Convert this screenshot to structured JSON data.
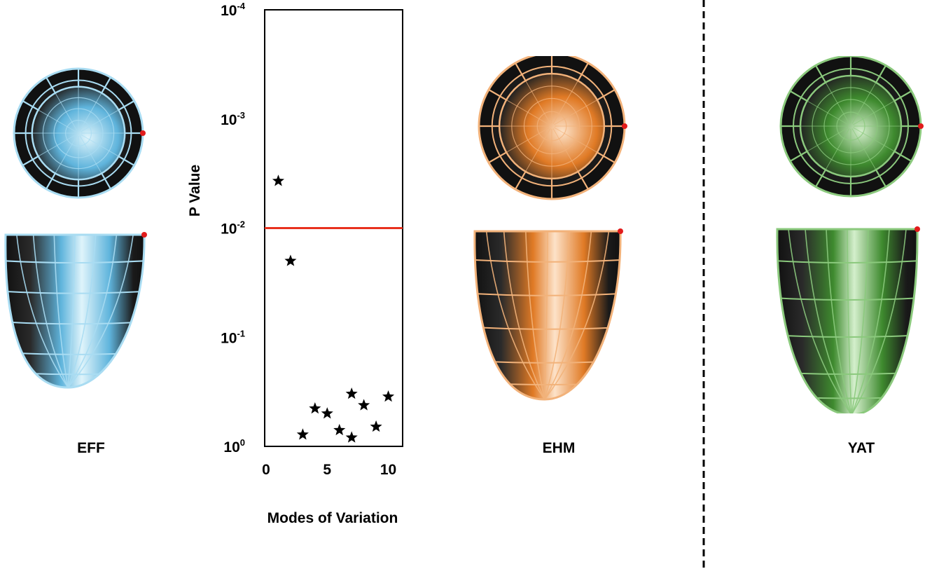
{
  "models": [
    {
      "label": "EFF",
      "color": "#5fb4dc",
      "wire": "#a9dcf2",
      "highlight": "#dff4fb"
    },
    {
      "label": "EHM",
      "color": "#e07a25",
      "wire": "#f2b27a",
      "highlight": "#fde2c8"
    },
    {
      "label": "YAT",
      "color": "#3e8a2e",
      "wire": "#8bc97d",
      "highlight": "#d4efcc"
    }
  ],
  "marker_color": "#e11b1b",
  "chart_data": {
    "type": "scatter",
    "xlabel": "Modes of Variation",
    "ylabel": "P Value",
    "x_ticks": [
      "0",
      "5",
      "10"
    ],
    "y_ticks": [
      {
        "base": "10",
        "exp": "-4",
        "value": 0.0001
      },
      {
        "base": "10",
        "exp": "-3",
        "value": 0.001
      },
      {
        "base": "10",
        "exp": "-2",
        "value": 0.01
      },
      {
        "base": "10",
        "exp": "-1",
        "value": 0.1
      },
      {
        "base": "10",
        "exp": "0",
        "value": 1
      }
    ],
    "y_scale": "log",
    "y_axis_inverted": true,
    "xlim": [
      0,
      11
    ],
    "ylim": [
      1,
      0.0001
    ],
    "threshold": {
      "value": 0.01,
      "color": "#e8311e"
    },
    "marker": "star",
    "points": [
      {
        "x": 1,
        "y": 0.0037
      },
      {
        "x": 2,
        "y": 0.02
      },
      {
        "x": 3,
        "y": 0.78
      },
      {
        "x": 4,
        "y": 0.45
      },
      {
        "x": 5,
        "y": 0.5
      },
      {
        "x": 6,
        "y": 0.71
      },
      {
        "x": 7,
        "y": 0.33
      },
      {
        "x": 7,
        "y": 0.83
      },
      {
        "x": 8,
        "y": 0.42
      },
      {
        "x": 9,
        "y": 0.66
      },
      {
        "x": 10,
        "y": 0.35
      }
    ]
  }
}
